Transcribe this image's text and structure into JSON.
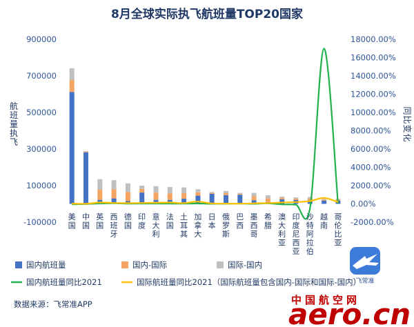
{
  "chart_data": {
    "type": "bar",
    "title": "8月全球实际执飞航班量TOP20国家",
    "categories": [
      "美国",
      "中国",
      "英国",
      "西班牙",
      "德国",
      "印度",
      "意大利",
      "法国",
      "土耳其",
      "加拿大",
      "日本",
      "俄罗斯",
      "巴西",
      "墨西哥",
      "希腊",
      "澳大利亚",
      "印度尼西亚",
      "沙特阿拉伯",
      "越南",
      "哥伦比亚"
    ],
    "y_left": {
      "label": "航班量执飞",
      "ylim": [
        -100000,
        900000
      ],
      "ticks": [
        -100000,
        100000,
        300000,
        500000,
        700000,
        900000
      ],
      "tick_labels": [
        "-100000",
        "100000",
        "300000",
        "500000",
        "700000",
        "900000"
      ]
    },
    "y_right": {
      "label": "同比变化",
      "ylim": [
        -2000,
        18000
      ],
      "ticks": [
        -2000,
        0,
        2000,
        4000,
        6000,
        8000,
        10000,
        12000,
        14000,
        16000,
        18000
      ],
      "tick_labels": [
        "-2000.00%",
        "0.00%",
        "2000.00%",
        "4000.00%",
        "6000.00%",
        "8000.00%",
        "10000.00%",
        "12000.00%",
        "14000.00%",
        "16000.00%",
        "18000.00%"
      ]
    },
    "series": [
      {
        "name": "国内航班量",
        "type": "bar",
        "stack": "s",
        "axis": "left",
        "color": "#4472c4",
        "values": [
          612000,
          282000,
          22000,
          30000,
          15000,
          62000,
          22000,
          22000,
          28000,
          45000,
          55000,
          48000,
          50000,
          20000,
          10000,
          25000,
          22000,
          20000,
          18000,
          18000
        ]
      },
      {
        "name": "国内-国际",
        "type": "bar",
        "stack": "s",
        "axis": "left",
        "color": "#f4a460",
        "values": [
          65000,
          3000,
          55000,
          50000,
          50000,
          20000,
          40000,
          35000,
          30000,
          18000,
          5000,
          12000,
          5000,
          22000,
          20000,
          8000,
          7000,
          10000,
          5000,
          5000
        ]
      },
      {
        "name": "国际-国内",
        "type": "bar",
        "stack": "s",
        "axis": "left",
        "color": "#c0c0c0",
        "values": [
          65000,
          3000,
          58000,
          50000,
          47000,
          18000,
          35000,
          35000,
          32000,
          17000,
          5000,
          10000,
          5000,
          18000,
          17000,
          7000,
          6000,
          8000,
          4000,
          4000
        ]
      },
      {
        "name": "国内航班量同比2021",
        "type": "line",
        "axis": "right",
        "color": "#22b14c",
        "values": [
          -50,
          -20,
          40,
          60,
          20,
          30,
          35,
          20,
          20,
          40,
          10,
          10,
          20,
          10,
          50,
          -50,
          -100,
          -450,
          17000,
          30
        ]
      },
      {
        "name": "国际航班量同比2021（国际航班量包含国内-国际和国际-国内）",
        "type": "line",
        "axis": "right",
        "color": "#ffc000",
        "values": [
          30,
          10,
          150,
          100,
          80,
          100,
          120,
          150,
          80,
          250,
          50,
          30,
          20,
          60,
          80,
          150,
          200,
          300,
          650,
          200
        ]
      }
    ],
    "legend_placement": "bottom",
    "grid": false
  },
  "source_text": "数据来源：飞常准APP",
  "watermark": {
    "cn": "中国航空网",
    "en": "aero.cn"
  },
  "badge": {
    "label": "飞常准"
  }
}
